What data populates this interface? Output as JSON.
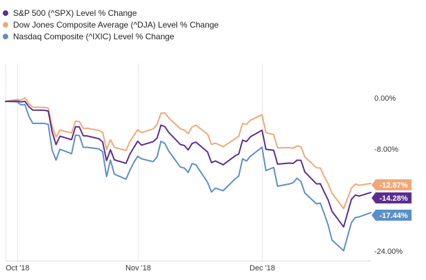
{
  "chart_data": {
    "type": "line",
    "y_unit": "% change",
    "ylim": [
      -24,
      3
    ],
    "yticks": [
      {
        "value": 0,
        "label": "0.00%"
      },
      {
        "value": -8,
        "label": "-8.00%"
      },
      {
        "value": -24,
        "label": "-24.00%"
      }
    ],
    "xticks": [
      {
        "date": "2018-10-01",
        "label": "Oct '18"
      },
      {
        "date": "2018-11-01",
        "label": "Nov '18"
      },
      {
        "date": "2018-12-03",
        "label": "Dec '18"
      }
    ],
    "grid": "vertical",
    "legend_position": "top-left",
    "x": [
      "2018-09-28",
      "2018-10-01",
      "2018-10-02",
      "2018-10-03",
      "2018-10-04",
      "2018-10-05",
      "2018-10-08",
      "2018-10-09",
      "2018-10-10",
      "2018-10-11",
      "2018-10-12",
      "2018-10-15",
      "2018-10-16",
      "2018-10-17",
      "2018-10-18",
      "2018-10-19",
      "2018-10-22",
      "2018-10-23",
      "2018-10-24",
      "2018-10-25",
      "2018-10-26",
      "2018-10-29",
      "2018-10-30",
      "2018-10-31",
      "2018-11-01",
      "2018-11-02",
      "2018-11-05",
      "2018-11-06",
      "2018-11-07",
      "2018-11-08",
      "2018-11-09",
      "2018-11-12",
      "2018-11-13",
      "2018-11-14",
      "2018-11-15",
      "2018-11-16",
      "2018-11-19",
      "2018-11-20",
      "2018-11-21",
      "2018-11-23",
      "2018-11-26",
      "2018-11-27",
      "2018-11-28",
      "2018-11-29",
      "2018-11-30",
      "2018-12-03",
      "2018-12-04",
      "2018-12-06",
      "2018-12-07",
      "2018-12-10",
      "2018-12-11",
      "2018-12-12",
      "2018-12-13",
      "2018-12-14",
      "2018-12-17",
      "2018-12-18",
      "2018-12-19",
      "2018-12-20",
      "2018-12-21",
      "2018-12-24",
      "2018-12-26",
      "2018-12-27",
      "2018-12-28",
      "2018-12-31"
    ],
    "series": [
      {
        "name": "S&P 500 (^SPX) Level % Change",
        "color": "#5b2d8e",
        "last_label": "-14.28%",
        "values": [
          0,
          0.04,
          -0.08,
          0.0,
          -0.82,
          -1.36,
          -1.39,
          -1.53,
          -4.79,
          -6.78,
          -5.45,
          -6.0,
          -3.98,
          -4.01,
          -5.39,
          -5.42,
          -5.85,
          -6.37,
          -9.29,
          -7.58,
          -9.16,
          -9.71,
          -8.27,
          -7.26,
          -6.25,
          -6.86,
          -6.31,
          -5.74,
          -3.72,
          -3.96,
          -4.87,
          -6.76,
          -6.91,
          -7.62,
          -6.6,
          -6.38,
          -7.95,
          -9.6,
          -9.34,
          -9.94,
          -8.57,
          -8.26,
          -6.08,
          -6.3,
          -5.55,
          -4.52,
          -7.51,
          -7.66,
          -9.84,
          -9.68,
          -9.72,
          -9.22,
          -9.24,
          -11.05,
          -12.93,
          -12.91,
          -14.21,
          -15.44,
          -17.23,
          -19.68,
          -15.36,
          -14.69,
          -14.84,
          -14.28
        ]
      },
      {
        "name": "Dow Jones Composite Average (^DJA) Level % Change",
        "color": "#f0a878",
        "last_label": "-12.87%",
        "values": [
          0,
          0.3,
          0.2,
          0.55,
          -0.35,
          -0.9,
          -0.95,
          -1.05,
          -3.9,
          -5.6,
          -4.5,
          -4.95,
          -3.1,
          -3.15,
          -4.25,
          -4.2,
          -4.55,
          -4.85,
          -7.55,
          -6.0,
          -7.2,
          -7.7,
          -6.3,
          -5.35,
          -4.45,
          -4.9,
          -4.3,
          -3.6,
          -1.85,
          -1.8,
          -2.6,
          -4.3,
          -4.5,
          -5.05,
          -4.0,
          -3.75,
          -5.15,
          -6.75,
          -6.55,
          -7.1,
          -5.9,
          -5.45,
          -3.45,
          -3.6,
          -2.95,
          -2.1,
          -4.9,
          -5.2,
          -7.3,
          -7.25,
          -7.35,
          -7.0,
          -7.1,
          -8.7,
          -10.4,
          -10.45,
          -11.8,
          -12.9,
          -14.4,
          -16.8,
          -13.6,
          -12.95,
          -13.15,
          -12.87
        ]
      },
      {
        "name": "Nasdaq Composite (^IXIC) Level % Change",
        "color": "#5b8fc7",
        "last_label": "-17.44%",
        "values": [
          0,
          -0.08,
          -0.55,
          -0.5,
          -2.3,
          -3.45,
          -3.45,
          -3.6,
          -7.65,
          -9.2,
          -7.5,
          -8.2,
          -5.3,
          -5.35,
          -7.2,
          -7.2,
          -7.45,
          -7.9,
          -11.8,
          -9.2,
          -11.4,
          -12.2,
          -10.8,
          -9.6,
          -8.6,
          -9.0,
          -9.45,
          -8.7,
          -6.25,
          -6.6,
          -7.8,
          -10.3,
          -10.45,
          -11.15,
          -9.75,
          -9.95,
          -12.7,
          -14.2,
          -13.6,
          -14.0,
          -12.2,
          -11.7,
          -9.0,
          -9.35,
          -8.6,
          -7.2,
          -10.85,
          -10.35,
          -13.3,
          -12.95,
          -12.75,
          -12.05,
          -12.55,
          -14.35,
          -16.05,
          -15.95,
          -17.6,
          -19.35,
          -21.75,
          -23.4,
          -19.0,
          -18.2,
          -18.1,
          -17.44
        ]
      }
    ]
  }
}
